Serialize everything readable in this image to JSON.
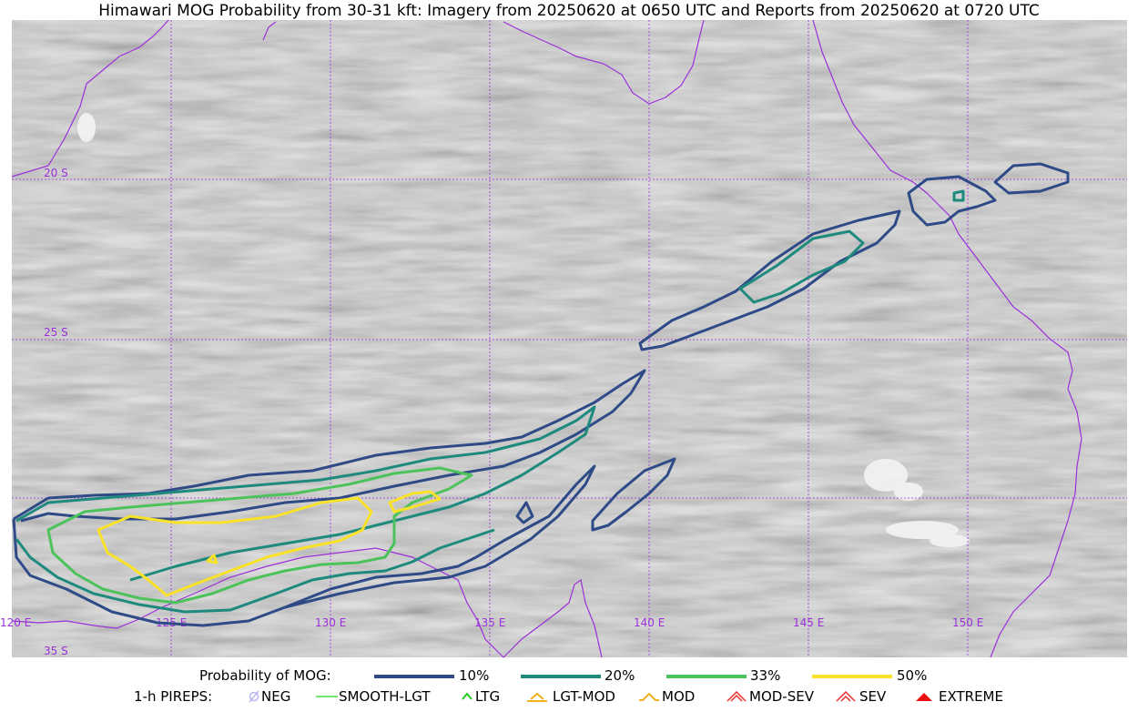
{
  "title": "Himawari MOG Probability from 30-31 kft: Imagery from 20250620 at 0650 UTC and Reports from 20250620 at 0720 UTC",
  "map": {
    "lon_labels": [
      "120 E",
      "125 E",
      "130 E",
      "135 E",
      "140 E",
      "145 E",
      "150 E"
    ],
    "lat_labels": [
      "20 S",
      "25 S",
      "35 S"
    ],
    "graticule_color": "#9b30d9",
    "coastline_color": "#9b30d9"
  },
  "legend": {
    "prob_title": "Probability of MOG:",
    "levels": [
      {
        "label": "10%",
        "color": "#2e4a87"
      },
      {
        "label": "20%",
        "color": "#1e8a7e"
      },
      {
        "label": "33%",
        "color": "#4cc35a"
      },
      {
        "label": "50%",
        "color": "#f9e227"
      }
    ],
    "pirep_title": "1-h PIREPS:",
    "pireps": [
      {
        "label": "NEG",
        "color": "#b9b6f2",
        "icon": "neg-icon"
      },
      {
        "label": "SMOOTH-LGT",
        "color": "#44dd44",
        "icon": "smooth-lgt-icon"
      },
      {
        "label": "LTG",
        "color": "#22cc22",
        "icon": "ltg-icon"
      },
      {
        "label": "LGT-MOD",
        "color": "#f0b020",
        "icon": "lgt-mod-icon"
      },
      {
        "label": "MOD",
        "color": "#f0b020",
        "icon": "mod-icon"
      },
      {
        "label": "MOD-SEV",
        "color": "#e83030",
        "icon": "mod-sev-icon"
      },
      {
        "label": "SEV",
        "color": "#e83030",
        "icon": "sev-icon"
      },
      {
        "label": "EXTREME",
        "color": "#e81010",
        "icon": "extreme-icon"
      }
    ]
  }
}
